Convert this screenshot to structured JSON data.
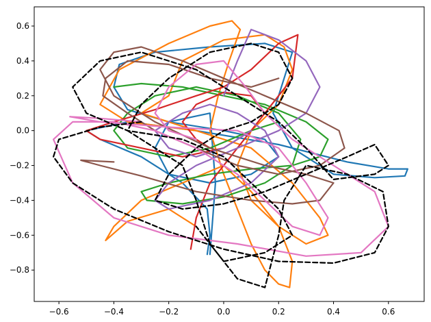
{
  "chart_data": {
    "type": "line",
    "title": "",
    "xlabel": "",
    "ylabel": "",
    "xlim": [
      -0.69,
      0.73
    ],
    "ylim": [
      -0.98,
      0.71
    ],
    "x_ticks": [
      -0.6,
      -0.4,
      -0.2,
      0.0,
      0.2,
      0.4,
      0.6
    ],
    "x_tick_labels": [
      "−0.6",
      "−0.4",
      "−0.2",
      "0.0",
      "0.2",
      "0.4",
      "0.6"
    ],
    "y_ticks": [
      0.6,
      0.4,
      0.2,
      0.0,
      -0.2,
      -0.4,
      -0.6,
      -0.8
    ],
    "y_tick_labels": [
      "0.6",
      "0.4",
      "0.2",
      "0.0",
      "−0.2",
      "−0.4",
      "−0.6",
      "−0.8"
    ],
    "grid": false,
    "legend": "none",
    "series": [
      {
        "color": "#1f77b4",
        "style": "solid",
        "x": [
          -0.06,
          -0.05,
          -0.06,
          -0.15,
          -0.3,
          -0.45,
          -0.5,
          -0.35,
          -0.1,
          0.2,
          0.45,
          0.6,
          0.67,
          0.66,
          0.55,
          0.4,
          0.25,
          0.18,
          0.22,
          0.25,
          0.15,
          -0.05,
          -0.25,
          -0.38,
          -0.4,
          -0.35,
          -0.2,
          0.0,
          0.15,
          0.2,
          0.1,
          -0.05,
          -0.2,
          -0.25,
          -0.2,
          -0.05,
          -0.03,
          -0.05
        ],
        "y": [
          -0.71,
          -0.6,
          -0.45,
          -0.3,
          -0.15,
          -0.05,
          0.0,
          0.05,
          0.0,
          -0.08,
          -0.18,
          -0.22,
          -0.22,
          -0.26,
          -0.27,
          -0.25,
          -0.1,
          0.1,
          0.3,
          0.45,
          0.5,
          0.48,
          0.45,
          0.38,
          0.25,
          0.12,
          0.05,
          0.0,
          -0.05,
          -0.15,
          -0.25,
          -0.3,
          -0.25,
          -0.1,
          0.05,
          0.1,
          -0.3,
          -0.71
        ]
      },
      {
        "color": "#ff7f0e",
        "style": "solid",
        "x": [
          -0.1,
          -0.2,
          -0.35,
          -0.43,
          -0.4,
          -0.3,
          -0.15,
          0.0,
          0.1,
          0.2,
          0.25,
          0.24,
          0.2,
          0.15,
          0.1,
          0.05,
          0.0,
          -0.05,
          -0.02,
          0.02,
          0.06,
          0.03,
          -0.05,
          -0.2,
          -0.38,
          -0.45,
          -0.35,
          -0.1,
          0.1,
          0.25,
          0.35,
          0.38,
          0.3,
          0.2,
          0.1,
          0.05,
          0.1,
          0.2,
          0.25,
          0.22,
          0.15,
          0.0,
          -0.15,
          -0.2,
          -0.3,
          -0.1
        ],
        "y": [
          -0.55,
          -0.45,
          -0.52,
          -0.63,
          -0.55,
          -0.4,
          -0.3,
          -0.2,
          -0.35,
          -0.55,
          -0.75,
          -0.9,
          -0.88,
          -0.8,
          -0.65,
          -0.45,
          -0.25,
          0.0,
          0.2,
          0.4,
          0.58,
          0.63,
          0.6,
          0.5,
          0.35,
          0.15,
          0.05,
          0.0,
          -0.1,
          -0.3,
          -0.5,
          -0.6,
          -0.65,
          -0.55,
          -0.4,
          -0.2,
          0.0,
          0.15,
          0.35,
          0.48,
          0.55,
          0.52,
          0.4,
          0.2,
          0.1,
          0.0
        ]
      },
      {
        "color": "#2ca02c",
        "style": "solid",
        "x": [
          -0.4,
          -0.3,
          -0.15,
          0.0,
          0.15,
          0.3,
          0.38,
          0.35,
          0.25,
          0.1,
          -0.05,
          -0.2,
          -0.3,
          -0.28,
          -0.15,
          0.0,
          0.15,
          0.25,
          0.28,
          0.2,
          0.05,
          -0.1,
          -0.25,
          -0.35,
          -0.4,
          -0.35,
          -0.2,
          -0.05,
          0.1,
          0.2
        ],
        "y": [
          0.25,
          0.27,
          0.25,
          0.2,
          0.15,
          0.05,
          -0.05,
          -0.15,
          -0.2,
          -0.22,
          -0.25,
          -0.3,
          -0.35,
          -0.4,
          -0.42,
          -0.38,
          -0.3,
          -0.2,
          -0.05,
          0.1,
          0.2,
          0.25,
          0.2,
          0.1,
          0.0,
          -0.1,
          -0.15,
          -0.1,
          0.0,
          0.05
        ]
      },
      {
        "color": "#d62728",
        "style": "solid",
        "x": [
          -0.12,
          -0.1,
          -0.05,
          0.05,
          0.15,
          0.25,
          0.27,
          0.2,
          0.1,
          0.0,
          -0.1,
          -0.25,
          -0.4,
          -0.5,
          -0.45,
          -0.3,
          -0.15,
          0.0,
          0.1,
          0.15,
          0.1,
          0.0,
          -0.1,
          -0.15,
          -0.1,
          -0.05
        ],
        "y": [
          -0.68,
          -0.5,
          -0.3,
          -0.1,
          0.1,
          0.3,
          0.55,
          0.5,
          0.35,
          0.25,
          0.2,
          0.12,
          0.05,
          0.0,
          -0.05,
          -0.1,
          -0.15,
          -0.1,
          0.0,
          0.1,
          0.2,
          0.22,
          0.15,
          0.05,
          -0.05,
          -0.1
        ]
      },
      {
        "color": "#9467bd",
        "style": "solid",
        "x": [
          0.0,
          0.05,
          0.1,
          0.2,
          0.3,
          0.35,
          0.3,
          0.2,
          0.05,
          -0.1,
          -0.2,
          -0.25,
          -0.2,
          -0.05,
          0.1,
          0.2,
          0.15,
          0.05,
          -0.05,
          -0.15,
          -0.25,
          -0.2,
          -0.1,
          0.0,
          0.1
        ],
        "y": [
          0.2,
          0.4,
          0.58,
          0.52,
          0.4,
          0.25,
          0.1,
          0.0,
          -0.1,
          -0.2,
          -0.3,
          -0.4,
          -0.45,
          -0.4,
          -0.3,
          -0.15,
          0.0,
          0.1,
          0.15,
          0.1,
          0.0,
          -0.1,
          -0.15,
          -0.1,
          0.0
        ]
      },
      {
        "color": "#8c564b",
        "style": "solid",
        "x": [
          -0.4,
          -0.52,
          -0.45,
          -0.3,
          -0.1,
          0.1,
          0.25,
          0.35,
          0.4,
          0.3,
          0.15,
          -0.05,
          -0.25,
          -0.4,
          -0.45,
          -0.4,
          -0.3,
          -0.15,
          0.0,
          0.15,
          0.3,
          0.42,
          0.44,
          0.35,
          0.2,
          0.05,
          -0.1,
          -0.25,
          -0.35,
          -0.44,
          -0.43,
          -0.35,
          -0.2,
          -0.05,
          0.1,
          0.2
        ],
        "y": [
          -0.18,
          -0.17,
          -0.2,
          -0.26,
          -0.35,
          -0.4,
          -0.42,
          -0.4,
          -0.3,
          -0.25,
          -0.2,
          -0.1,
          0.05,
          0.2,
          0.35,
          0.45,
          0.48,
          0.4,
          0.3,
          0.2,
          0.1,
          0.0,
          -0.1,
          -0.2,
          -0.25,
          -0.2,
          -0.1,
          0.0,
          0.1,
          0.2,
          0.3,
          0.4,
          0.38,
          0.3,
          0.25,
          0.3
        ]
      },
      {
        "color": "#e377c2",
        "style": "solid",
        "x": [
          -0.3,
          -0.45,
          -0.56,
          -0.45,
          -0.2,
          0.05,
          0.2,
          0.3,
          0.38,
          0.35,
          0.25,
          0.15,
          0.05,
          -0.1,
          -0.25,
          -0.4,
          -0.55,
          -0.62,
          -0.55,
          -0.4,
          -0.2,
          0.05,
          0.3,
          0.5,
          0.6,
          0.55,
          0.4,
          0.25,
          0.15,
          0.08,
          0.0,
          -0.1,
          -0.2,
          -0.25,
          -0.2,
          -0.1
        ],
        "y": [
          0.05,
          0.07,
          0.08,
          0.05,
          0.02,
          0.0,
          -0.1,
          -0.3,
          -0.5,
          -0.6,
          -0.55,
          -0.4,
          -0.25,
          -0.1,
          0.0,
          0.05,
          0.05,
          -0.05,
          -0.3,
          -0.5,
          -0.6,
          -0.65,
          -0.72,
          -0.7,
          -0.55,
          -0.35,
          -0.2,
          -0.05,
          0.1,
          0.25,
          0.4,
          0.38,
          0.25,
          0.1,
          0.0,
          -0.05
        ]
      },
      {
        "color": "#000000",
        "style": "dashed",
        "x": [
          -0.3,
          -0.45,
          -0.6,
          -0.62,
          -0.55,
          -0.4,
          -0.2,
          0.0,
          0.2,
          0.4,
          0.55,
          0.6,
          0.58,
          0.45,
          0.3,
          0.22,
          0.2,
          0.15,
          0.05,
          -0.05,
          -0.1,
          -0.15,
          -0.25,
          -0.35,
          -0.3,
          -0.2,
          -0.05,
          0.1,
          0.2,
          0.25,
          0.2,
          0.1,
          0.0,
          -0.1,
          -0.2,
          -0.25,
          -0.15,
          0.0,
          0.15,
          0.3,
          0.45,
          0.55,
          0.6,
          0.55,
          0.4,
          0.3,
          0.2,
          0.05,
          -0.1,
          -0.3,
          -0.45,
          -0.55,
          -0.5,
          -0.35,
          -0.15,
          0.0,
          0.1,
          0.2,
          0.25,
          0.15,
          0.0,
          -0.1
        ],
        "y": [
          0.05,
          0.02,
          -0.05,
          -0.15,
          -0.3,
          -0.45,
          -0.58,
          -0.68,
          -0.75,
          -0.76,
          -0.7,
          -0.55,
          -0.35,
          -0.25,
          -0.2,
          -0.4,
          -0.6,
          -0.9,
          -0.85,
          -0.65,
          -0.4,
          -0.2,
          -0.1,
          0.0,
          0.15,
          0.3,
          0.45,
          0.5,
          0.45,
          0.3,
          0.15,
          0.05,
          0.0,
          -0.1,
          -0.25,
          -0.4,
          -0.45,
          -0.42,
          -0.35,
          -0.25,
          -0.15,
          -0.08,
          -0.2,
          -0.25,
          -0.28,
          -0.1,
          0.05,
          0.2,
          0.35,
          0.45,
          0.4,
          0.25,
          0.1,
          0.0,
          -0.05,
          -0.15,
          -0.3,
          -0.45,
          -0.6,
          -0.7,
          -0.75,
          -0.55
        ]
      }
    ]
  }
}
